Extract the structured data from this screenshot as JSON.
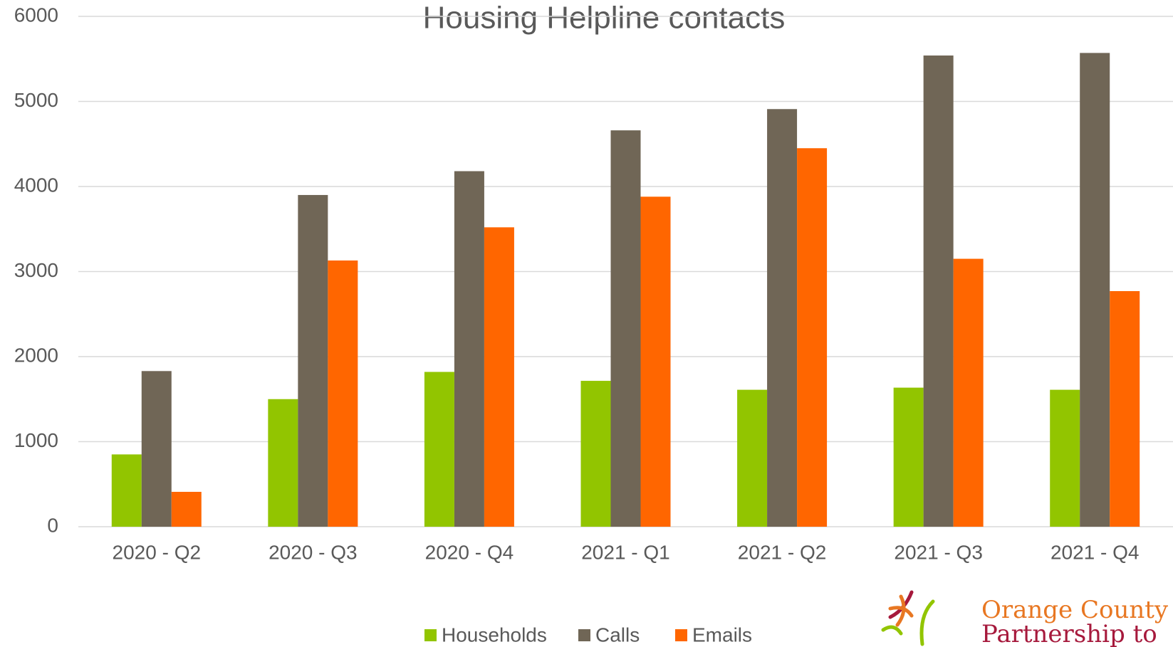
{
  "chart_data": {
    "type": "bar",
    "title": "Housing Helpline contacts",
    "categories": [
      "2020 - Q2",
      "2020 - Q3",
      "2020 - Q4",
      "2021 - Q1",
      "2021 - Q2",
      "2021 - Q3",
      "2021 - Q4"
    ],
    "series": [
      {
        "name": "Households",
        "color": "#92c500",
        "values": [
          850,
          1500,
          1820,
          1715,
          1610,
          1635,
          1610
        ]
      },
      {
        "name": "Calls",
        "color": "#706656",
        "values": [
          1830,
          3900,
          4180,
          4660,
          4910,
          5540,
          5570
        ]
      },
      {
        "name": "Emails",
        "color": "#ff6600",
        "values": [
          410,
          3130,
          3520,
          3880,
          4450,
          3150,
          2770
        ]
      }
    ],
    "ylim": [
      0,
      6000
    ],
    "yticks": [
      0,
      1000,
      2000,
      3000,
      4000,
      5000,
      6000
    ],
    "grid": true,
    "legend": "bottom",
    "logo_text": [
      "Orange County",
      "Partnership to"
    ]
  }
}
